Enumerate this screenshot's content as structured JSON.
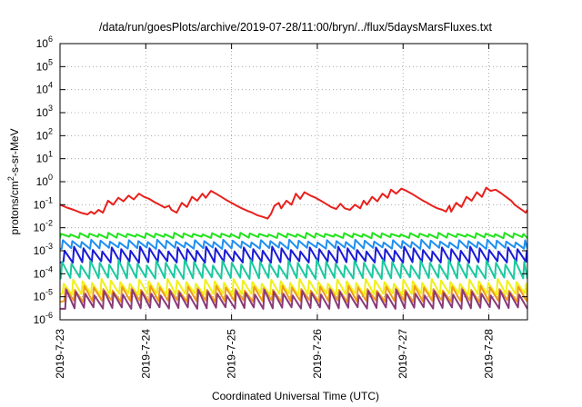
{
  "chart_data": {
    "type": "line",
    "title": "/data/run/goesPlots/archive/2019-07-28/11:00/bryn/../flux/5daysMarsFluxes.txt",
    "xlabel": "Coordinated Universal Time (UTC)",
    "ylabel_parts": [
      "protons/cm",
      "2",
      "-s-sr-MeV"
    ],
    "x_unit": "days",
    "xlim": [
      0,
      5.45
    ],
    "xticks": [
      {
        "x": 0,
        "label": "2019-7-23"
      },
      {
        "x": 1,
        "label": "2019-7-24"
      },
      {
        "x": 2,
        "label": "2019-7-25"
      },
      {
        "x": 3,
        "label": "2019-7-26"
      },
      {
        "x": 4,
        "label": "2019-7-27"
      },
      {
        "x": 5,
        "label": "2019-7-28"
      }
    ],
    "ylog": true,
    "ylim_exp": [
      -6,
      6
    ],
    "yticks": [
      {
        "base": "10",
        "exp": "-6"
      },
      {
        "base": "10",
        "exp": "-5"
      },
      {
        "base": "10",
        "exp": "-4"
      },
      {
        "base": "10",
        "exp": "-3"
      },
      {
        "base": "10",
        "exp": "-2"
      },
      {
        "base": "10",
        "exp": "-1"
      },
      {
        "base": "10",
        "exp": "0"
      },
      {
        "base": "10",
        "exp": "1"
      },
      {
        "base": "10",
        "exp": "2"
      },
      {
        "base": "10",
        "exp": "3"
      },
      {
        "base": "10",
        "exp": "4"
      },
      {
        "base": "10",
        "exp": "5"
      },
      {
        "base": "10",
        "exp": "6"
      }
    ],
    "grid": true,
    "series": [
      {
        "color": "#e8201c",
        "points": [
          [
            0.0,
            0.1
          ],
          [
            0.08,
            0.075
          ],
          [
            0.16,
            0.06
          ],
          [
            0.24,
            0.045
          ],
          [
            0.32,
            0.038
          ],
          [
            0.36,
            0.05
          ],
          [
            0.4,
            0.04
          ],
          [
            0.45,
            0.06
          ],
          [
            0.5,
            0.045
          ],
          [
            0.56,
            0.15
          ],
          [
            0.62,
            0.1
          ],
          [
            0.68,
            0.2
          ],
          [
            0.74,
            0.14
          ],
          [
            0.8,
            0.25
          ],
          [
            0.86,
            0.17
          ],
          [
            0.92,
            0.3
          ],
          [
            0.98,
            0.22
          ],
          [
            1.04,
            0.18
          ],
          [
            1.1,
            0.13
          ],
          [
            1.16,
            0.1
          ],
          [
            1.22,
            0.075
          ],
          [
            1.27,
            0.09
          ],
          [
            1.3,
            0.06
          ],
          [
            1.36,
            0.045
          ],
          [
            1.42,
            0.12
          ],
          [
            1.48,
            0.08
          ],
          [
            1.54,
            0.22
          ],
          [
            1.6,
            0.15
          ],
          [
            1.66,
            0.3
          ],
          [
            1.7,
            0.2
          ],
          [
            1.76,
            0.4
          ],
          [
            1.82,
            0.3
          ],
          [
            1.88,
            0.22
          ],
          [
            1.94,
            0.16
          ],
          [
            2.0,
            0.12
          ],
          [
            2.06,
            0.09
          ],
          [
            2.12,
            0.07
          ],
          [
            2.18,
            0.055
          ],
          [
            2.24,
            0.045
          ],
          [
            2.3,
            0.035
          ],
          [
            2.36,
            0.03
          ],
          [
            2.42,
            0.025
          ],
          [
            2.46,
            0.04
          ],
          [
            2.5,
            0.09
          ],
          [
            2.55,
            0.12
          ],
          [
            2.58,
            0.07
          ],
          [
            2.64,
            0.15
          ],
          [
            2.7,
            0.1
          ],
          [
            2.75,
            0.3
          ],
          [
            2.8,
            0.18
          ],
          [
            2.85,
            0.35
          ],
          [
            2.92,
            0.25
          ],
          [
            2.98,
            0.2
          ],
          [
            3.04,
            0.15
          ],
          [
            3.1,
            0.11
          ],
          [
            3.16,
            0.08
          ],
          [
            3.22,
            0.065
          ],
          [
            3.27,
            0.11
          ],
          [
            3.32,
            0.07
          ],
          [
            3.38,
            0.06
          ],
          [
            3.44,
            0.1
          ],
          [
            3.5,
            0.07
          ],
          [
            3.54,
            0.15
          ],
          [
            3.58,
            0.1
          ],
          [
            3.64,
            0.22
          ],
          [
            3.7,
            0.14
          ],
          [
            3.76,
            0.3
          ],
          [
            3.82,
            0.2
          ],
          [
            3.86,
            0.45
          ],
          [
            3.92,
            0.3
          ],
          [
            3.98,
            0.5
          ],
          [
            4.04,
            0.4
          ],
          [
            4.1,
            0.3
          ],
          [
            4.16,
            0.22
          ],
          [
            4.22,
            0.16
          ],
          [
            4.28,
            0.12
          ],
          [
            4.34,
            0.09
          ],
          [
            4.4,
            0.07
          ],
          [
            4.46,
            0.06
          ],
          [
            4.5,
            0.05
          ],
          [
            4.54,
            0.09
          ],
          [
            4.56,
            0.05
          ],
          [
            4.62,
            0.12
          ],
          [
            4.68,
            0.08
          ],
          [
            4.74,
            0.22
          ],
          [
            4.8,
            0.15
          ],
          [
            4.86,
            0.35
          ],
          [
            4.92,
            0.22
          ],
          [
            4.97,
            0.55
          ],
          [
            5.02,
            0.4
          ],
          [
            5.08,
            0.45
          ],
          [
            5.14,
            0.32
          ],
          [
            5.2,
            0.22
          ],
          [
            5.26,
            0.15
          ],
          [
            5.3,
            0.1
          ],
          [
            5.36,
            0.07
          ],
          [
            5.4,
            0.055
          ],
          [
            5.43,
            0.045
          ],
          [
            5.45,
            0.06
          ]
        ]
      },
      {
        "color": "#22e21c",
        "base": 0.0035,
        "peak": 0.006,
        "period": 0.11,
        "phase": 0.0
      },
      {
        "color": "#1f8ff0",
        "base": 0.0012,
        "peak": 0.003,
        "period": 0.11,
        "phase": 0.02
      },
      {
        "color": "#1a1ad6",
        "base": 0.0003,
        "peak": 0.0015,
        "period": 0.11,
        "phase": 0.04
      },
      {
        "color": "#1ac9a0",
        "base": 6e-05,
        "peak": 0.0004,
        "period": 0.11,
        "phase": 0.01
      },
      {
        "color": "#f0f01a",
        "base": 1.2e-05,
        "peak": 6e-05,
        "period": 0.11,
        "phase": 0.03
      },
      {
        "color": "#f09a1a",
        "base": 6e-06,
        "peak": 3e-05,
        "period": 0.11,
        "phase": 0.05
      },
      {
        "color": "#8a3a7a",
        "base": 3e-06,
        "peak": 2e-05,
        "period": 0.11,
        "phase": 0.06
      }
    ]
  }
}
